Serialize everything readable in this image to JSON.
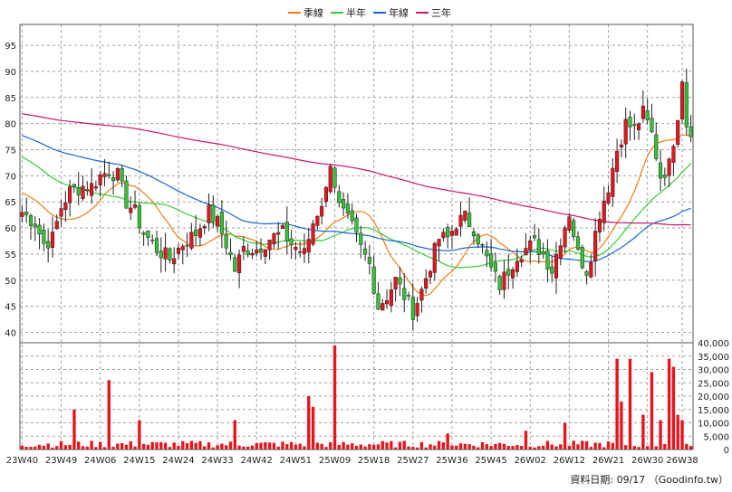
{
  "chart_data": {
    "type": "candlestick-with-volume",
    "legend": [
      {
        "name": "季線",
        "color": "#f07c16"
      },
      {
        "name": "半年",
        "color": "#33cc33"
      },
      {
        "name": "年線",
        "color": "#1565d8"
      },
      {
        "name": "三年",
        "color": "#c8186a"
      }
    ],
    "price_axis": {
      "ylim": [
        38,
        99
      ],
      "ticks": [
        40,
        45,
        50,
        55,
        60,
        65,
        70,
        75,
        80,
        85,
        90,
        95
      ]
    },
    "volume_axis": {
      "ylim": [
        0,
        40000
      ],
      "ticks": [
        0,
        5000,
        10000,
        15000,
        20000,
        25000,
        30000,
        35000,
        40000
      ],
      "tick_labels": [
        "0",
        "5,000",
        "10,000",
        "15,000",
        "20,000",
        "25,000",
        "30,000",
        "35,000",
        "40,000"
      ]
    },
    "x_tick_labels": [
      "23W40",
      "23W49",
      "24W06",
      "24W15",
      "24W24",
      "24W33",
      "24W42",
      "24W51",
      "25W09",
      "25W18",
      "25W27",
      "25W36",
      "25W45",
      "26W02",
      "26W12",
      "26W21",
      "26W30",
      "26W38"
    ],
    "weeks_total": 155,
    "x_tick_weeks": [
      0,
      9,
      18,
      27,
      36,
      45,
      54,
      63,
      72,
      81,
      90,
      99,
      108,
      117,
      126,
      135,
      144,
      152
    ],
    "anchors": [
      [
        0,
        63
      ],
      [
        3,
        61
      ],
      [
        5,
        57
      ],
      [
        7,
        58
      ],
      [
        9,
        64
      ],
      [
        11,
        67
      ],
      [
        14,
        68
      ],
      [
        16,
        68
      ],
      [
        18,
        70
      ],
      [
        20,
        71
      ],
      [
        22,
        70
      ],
      [
        24,
        65
      ],
      [
        26,
        63
      ],
      [
        28,
        59
      ],
      [
        31,
        56
      ],
      [
        34,
        54
      ],
      [
        37,
        57
      ],
      [
        40,
        59
      ],
      [
        43,
        63
      ],
      [
        45,
        61
      ],
      [
        47,
        57
      ],
      [
        49,
        52
      ],
      [
        51,
        56
      ],
      [
        54,
        56
      ],
      [
        57,
        58
      ],
      [
        60,
        59
      ],
      [
        62,
        57
      ],
      [
        65,
        55
      ],
      [
        67,
        61
      ],
      [
        70,
        67
      ],
      [
        71,
        73
      ],
      [
        73,
        64
      ],
      [
        76,
        60
      ],
      [
        78,
        56
      ],
      [
        80,
        53
      ],
      [
        82,
        45
      ],
      [
        84,
        47
      ],
      [
        86,
        50
      ],
      [
        88,
        47
      ],
      [
        90,
        44
      ],
      [
        92,
        48
      ],
      [
        94,
        53
      ],
      [
        96,
        58
      ],
      [
        98,
        58
      ],
      [
        100,
        61
      ],
      [
        102,
        62
      ],
      [
        104,
        60
      ],
      [
        106,
        56
      ],
      [
        108,
        52
      ],
      [
        110,
        49
      ],
      [
        112,
        52
      ],
      [
        114,
        55
      ],
      [
        116,
        56
      ],
      [
        118,
        57
      ],
      [
        120,
        55
      ],
      [
        122,
        52
      ],
      [
        124,
        58
      ],
      [
        126,
        63
      ],
      [
        128,
        55
      ],
      [
        130,
        52
      ],
      [
        131,
        55
      ],
      [
        133,
        63
      ],
      [
        135,
        68
      ],
      [
        137,
        75
      ],
      [
        139,
        80
      ],
      [
        141,
        79
      ],
      [
        143,
        82
      ],
      [
        145,
        78
      ],
      [
        147,
        70
      ],
      [
        149,
        72
      ],
      [
        151,
        82
      ],
      [
        152,
        89
      ],
      [
        153,
        80
      ],
      [
        154,
        79
      ]
    ],
    "volume_events": [
      [
        12,
        15000
      ],
      [
        20,
        26000
      ],
      [
        27,
        11000
      ],
      [
        49,
        11000
      ],
      [
        66,
        20000
      ],
      [
        67,
        16000
      ],
      [
        72,
        39000
      ],
      [
        98,
        6000
      ],
      [
        116,
        7000
      ],
      [
        125,
        10000
      ],
      [
        137,
        34000
      ],
      [
        138,
        18000
      ],
      [
        140,
        34000
      ],
      [
        143,
        13000
      ],
      [
        145,
        29000
      ],
      [
        147,
        11000
      ],
      [
        149,
        34000
      ],
      [
        150,
        31000
      ],
      [
        151,
        13000
      ],
      [
        152,
        11000
      ]
    ],
    "grid": true,
    "bar_colors": {
      "up": "#e8141c",
      "down": "#35c235",
      "volume": "#e8141c"
    }
  },
  "footer": {
    "source_text": "資料日期: 09/17 （Goodinfo.tw）"
  }
}
